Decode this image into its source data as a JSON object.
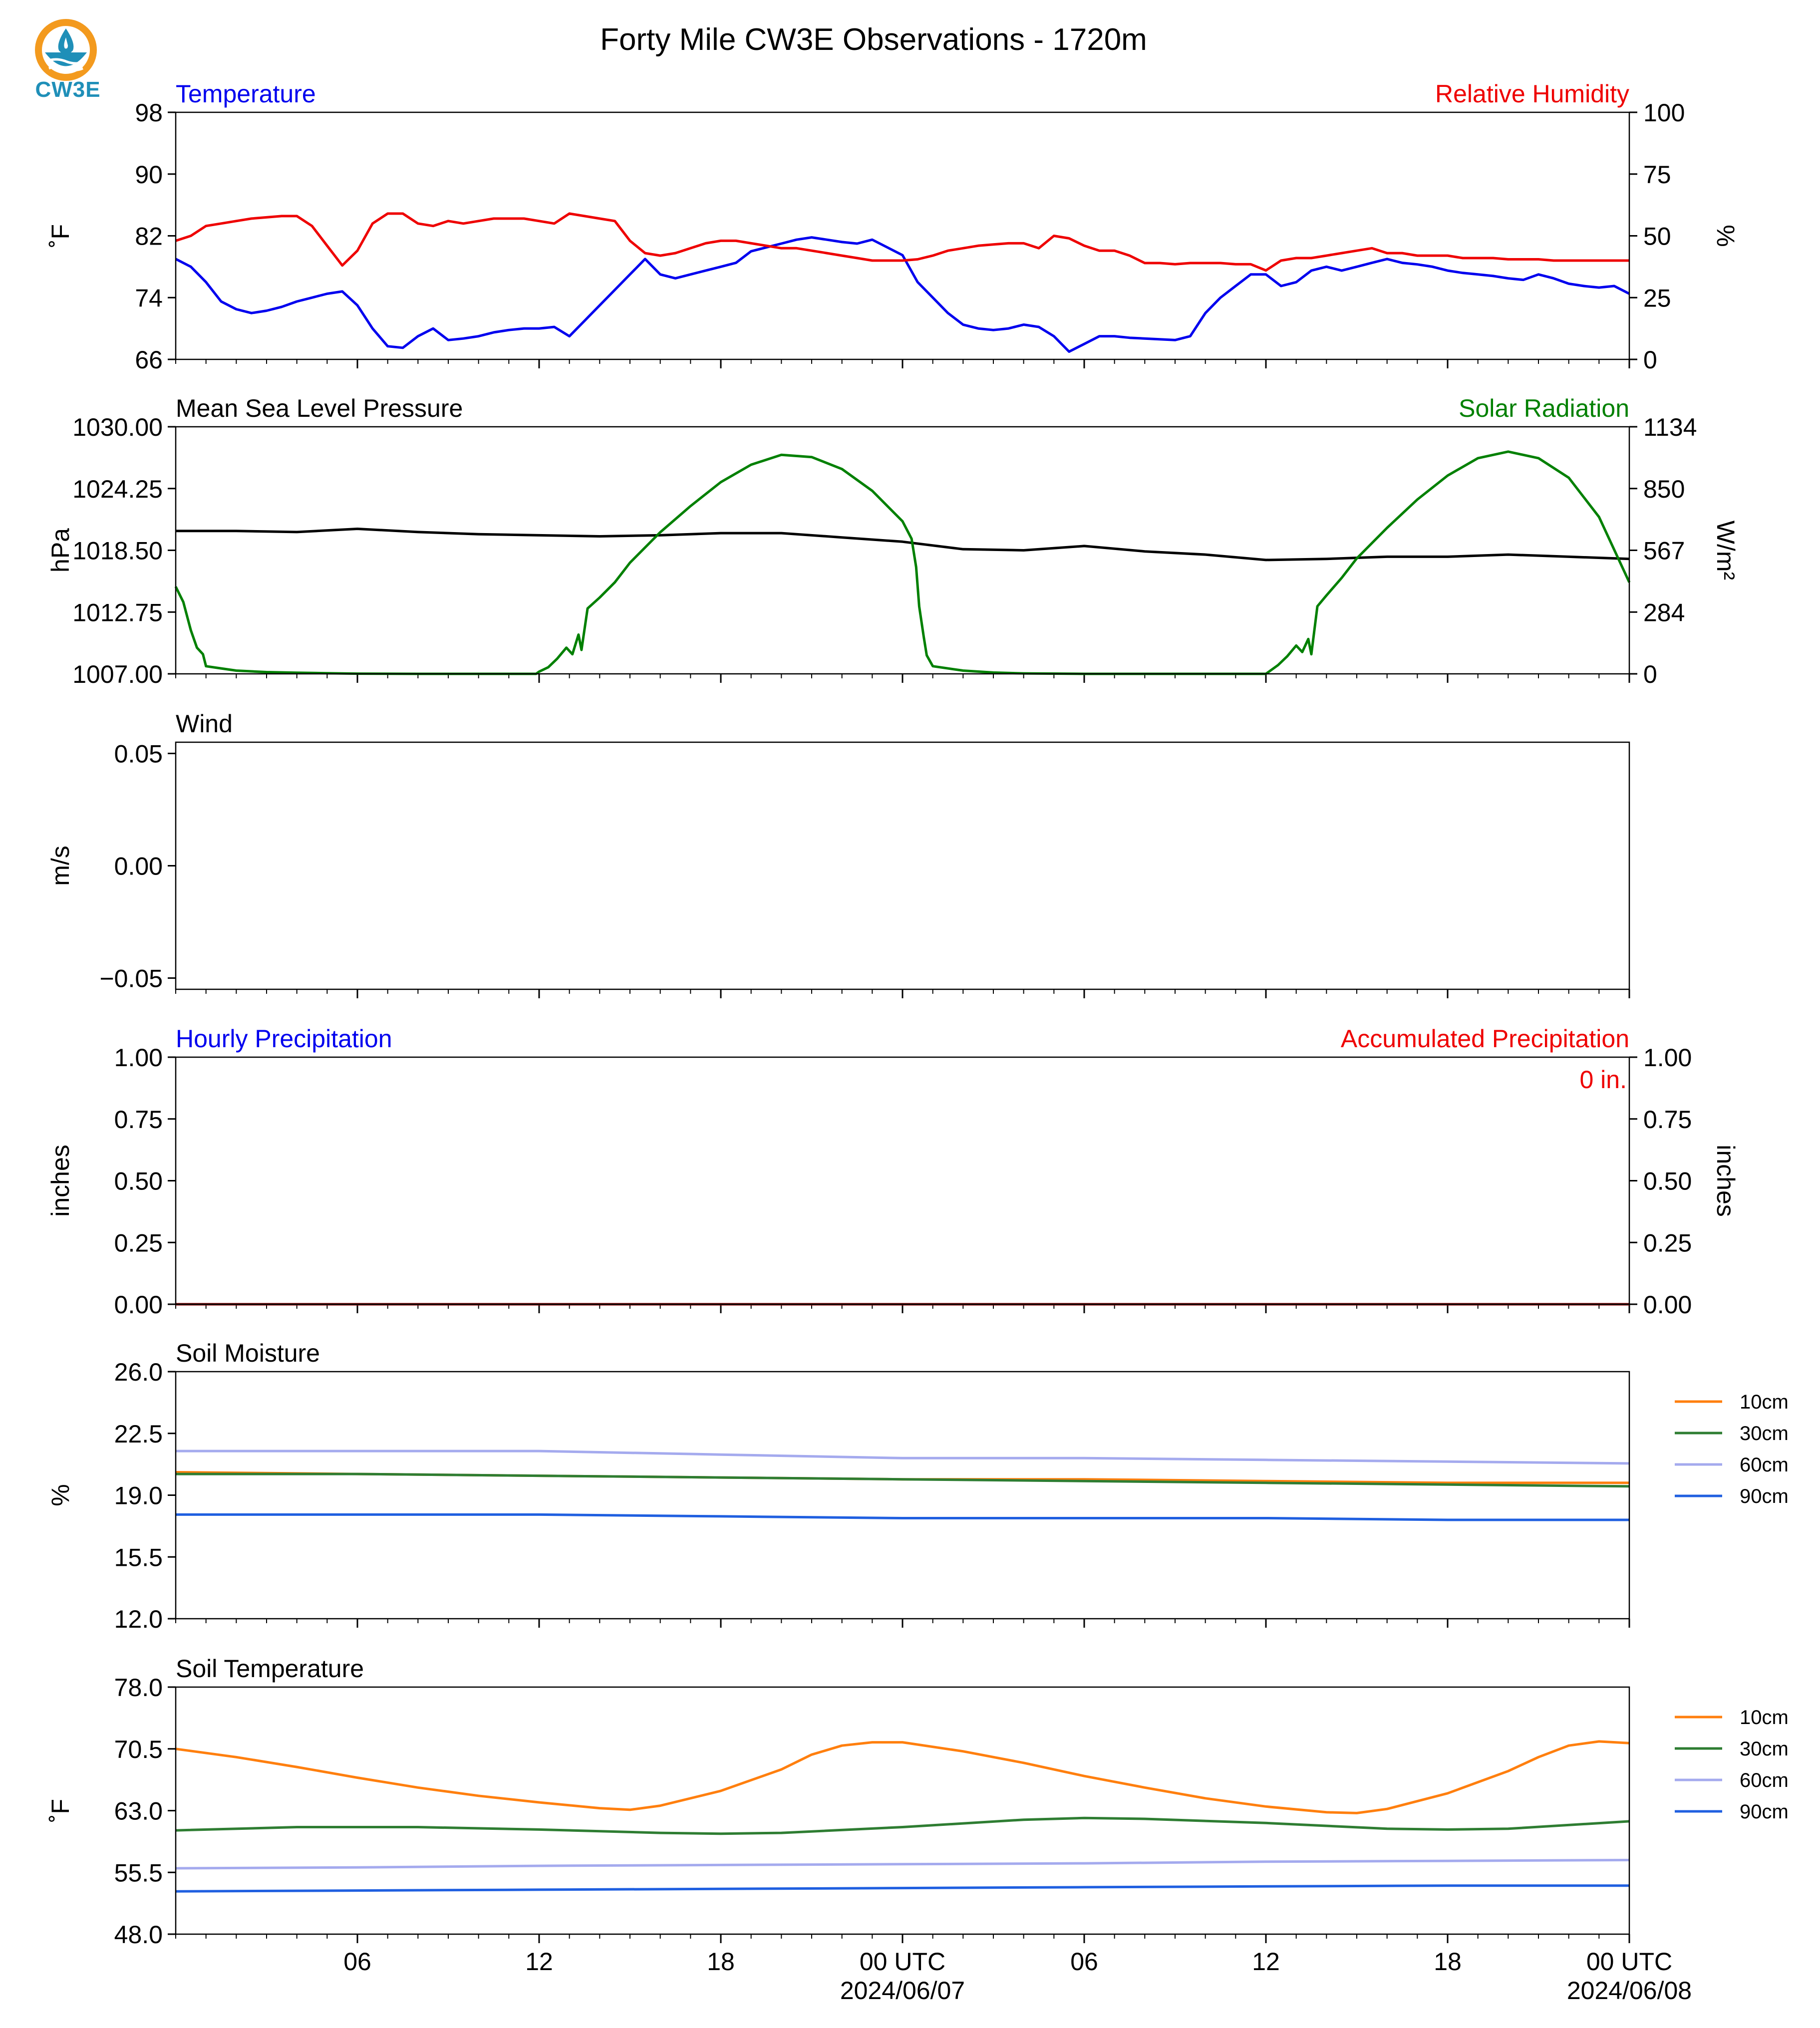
{
  "title": "Forty Mile CW3E Observations - 1720m",
  "logo": {
    "text": "CW3E",
    "colors": {
      "ring": "#f39a1e",
      "water": "#1f8fb8"
    }
  },
  "chart_data": [
    {
      "type": "line",
      "left_title": "Temperature",
      "right_title": "Relative Humidity",
      "left_title_color": "#0000ee",
      "right_title_color": "#ee0000",
      "ylabel": "˚F",
      "y2label": "%",
      "ylim": [
        66,
        98
      ],
      "y2lim": [
        0,
        100
      ],
      "yticks": [
        "98",
        "90",
        "82",
        "74",
        "66"
      ],
      "y2ticks": [
        "100",
        "75",
        "50",
        "25",
        "0"
      ],
      "series": [
        {
          "axis": "left",
          "color": "#0000ee",
          "x": [
            0,
            0.5,
            1,
            1.5,
            2,
            2.5,
            3,
            3.5,
            4,
            4.5,
            5,
            5.5,
            6,
            6.5,
            7,
            7.5,
            8,
            8.5,
            9,
            9.5,
            10,
            10.5,
            11,
            11.5,
            12,
            12.5,
            13,
            13.5,
            14,
            14.5,
            15,
            15.5,
            16,
            16.5,
            17,
            17.5,
            18,
            18.5,
            19,
            19.5,
            20,
            20.5,
            21,
            21.5,
            22,
            22.5,
            23,
            23.5,
            24,
            24.5,
            25,
            25.5,
            26,
            26.5,
            27,
            27.5,
            28,
            28.5,
            29,
            29.5,
            30,
            30.5,
            31,
            31.5,
            32,
            32.5,
            33,
            33.5,
            34,
            34.5,
            35,
            35.5,
            36,
            36.5,
            37,
            37.5,
            38,
            38.5,
            39,
            39.5,
            40,
            40.5,
            41,
            41.5,
            42,
            42.5,
            43,
            43.5,
            44,
            44.5,
            45,
            45.5,
            46,
            46.5,
            47,
            47.5,
            48
          ],
          "y": [
            79,
            78,
            76,
            73.5,
            72.5,
            72,
            72.3,
            72.8,
            73.5,
            74,
            74.5,
            74.8,
            73,
            70,
            67.7,
            67.5,
            69,
            70,
            68.5,
            68.7,
            69,
            69.5,
            69.8,
            70,
            70,
            70.2,
            69,
            71,
            73,
            75,
            77,
            79,
            77,
            76.5,
            77,
            77.5,
            78,
            78.5,
            80,
            80.5,
            81,
            81.5,
            81.8,
            81.5,
            81.2,
            81,
            81.5,
            80.5,
            79.5,
            76,
            74,
            72,
            70.5,
            70,
            69.8,
            70,
            70.5,
            70.2,
            69,
            67,
            68,
            69,
            69,
            68.8,
            68.7,
            68.6,
            68.5,
            69,
            72,
            74,
            75.5,
            77,
            77,
            75.5,
            76,
            77.5,
            78,
            77.5,
            78,
            78.5,
            79,
            78.5,
            78.3,
            78,
            77.5,
            77.2,
            77,
            76.8,
            76.5,
            76.3,
            77,
            76.5,
            75.8,
            75.5,
            75.3,
            75.5,
            74.5
          ]
        },
        {
          "axis": "right",
          "color": "#ee0000",
          "x": [
            0,
            0.5,
            1,
            1.5,
            2,
            2.5,
            3,
            3.5,
            4,
            4.5,
            5,
            5.5,
            6,
            6.5,
            7,
            7.5,
            8,
            8.5,
            9,
            9.5,
            10,
            10.5,
            11,
            11.5,
            12,
            12.5,
            13,
            13.5,
            14,
            14.5,
            15,
            15.5,
            16,
            16.5,
            17,
            17.5,
            18,
            18.5,
            19,
            19.5,
            20,
            20.5,
            21,
            21.5,
            22,
            22.5,
            23,
            23.5,
            24,
            24.5,
            25,
            25.5,
            26,
            26.5,
            27,
            27.5,
            28,
            28.5,
            29,
            29.5,
            30,
            30.5,
            31,
            31.5,
            32,
            32.5,
            33,
            33.5,
            34,
            34.5,
            35,
            35.5,
            36,
            36.5,
            37,
            37.5,
            38,
            38.5,
            39,
            39.5,
            40,
            40.5,
            41,
            41.5,
            42,
            42.5,
            43,
            43.5,
            44,
            44.5,
            45,
            45.5,
            46,
            46.5,
            47,
            47.5,
            48
          ],
          "y": [
            48,
            50,
            54,
            55,
            56,
            57,
            57.5,
            58,
            58,
            54,
            46,
            38,
            44,
            55,
            59,
            59,
            55,
            54,
            56,
            55,
            56,
            57,
            57,
            57,
            56,
            55,
            59,
            58,
            57,
            56,
            48,
            43,
            42,
            43,
            45,
            47,
            48,
            48,
            47,
            46,
            45,
            45,
            44,
            43,
            42,
            41,
            40,
            40,
            40,
            40.5,
            42,
            44,
            45,
            46,
            46.5,
            47,
            47,
            45,
            50,
            49,
            46,
            44,
            44,
            42,
            39,
            39,
            38.5,
            39,
            39,
            39,
            38.5,
            38.5,
            36,
            40,
            41,
            41,
            42,
            43,
            44,
            45,
            43,
            43,
            42,
            42,
            42,
            41,
            41,
            41,
            40.5,
            40.5,
            40.5,
            40,
            40,
            40,
            40,
            40,
            40
          ]
        }
      ]
    },
    {
      "type": "line",
      "left_title": "Mean Sea Level Pressure",
      "right_title": "Solar Radiation",
      "left_title_color": "#000000",
      "right_title_color": "#008000",
      "ylabel": "hPa",
      "y2label": "W/m²",
      "ylim": [
        1007,
        1030
      ],
      "y2lim": [
        0,
        1134
      ],
      "yticks": [
        "1030.00",
        "1024.25",
        "1018.50",
        "1012.75",
        "1007.00"
      ],
      "y2ticks": [
        "1134",
        "850",
        "567",
        "284",
        "0"
      ],
      "series": [
        {
          "axis": "left",
          "color": "#000000",
          "x": [
            0,
            2,
            4,
            6,
            8,
            10,
            12,
            14,
            16,
            18,
            20,
            22,
            24,
            26,
            28,
            30,
            32,
            34,
            36,
            38,
            40,
            42,
            44,
            46,
            48
          ],
          "y": [
            1020.3,
            1020.3,
            1020.2,
            1020.5,
            1020.2,
            1020,
            1019.9,
            1019.8,
            1019.9,
            1020.1,
            1020.1,
            1019.7,
            1019.3,
            1018.6,
            1018.5,
            1018.9,
            1018.4,
            1018.1,
            1017.6,
            1017.7,
            1017.9,
            1017.9,
            1018.1,
            1017.9,
            1017.7
          ]
        },
        {
          "axis": "right",
          "color": "#008000",
          "x": [
            0,
            0.25,
            0.5,
            0.7,
            0.9,
            1,
            1.5,
            2,
            3,
            4,
            5,
            6,
            8,
            10,
            11,
            11.9,
            12,
            12.3,
            12.6,
            12.9,
            13.1,
            13.3,
            13.4,
            13.6,
            14,
            14.5,
            15,
            16,
            17,
            18,
            19,
            20,
            21,
            22,
            23,
            24,
            24.3,
            24.45,
            24.55,
            24.7,
            24.8,
            25,
            26,
            27,
            28,
            30,
            32,
            34,
            35,
            36,
            36.1,
            36.4,
            36.7,
            37,
            37.2,
            37.4,
            37.5,
            37.7,
            38,
            38.5,
            39,
            40,
            41,
            42,
            43,
            44,
            45,
            46,
            47,
            48
          ],
          "y": [
            400,
            330,
            200,
            120,
            90,
            35,
            25,
            15,
            8,
            5,
            3,
            1,
            0,
            0,
            0,
            0,
            10,
            30,
            70,
            120,
            90,
            180,
            110,
            300,
            350,
            420,
            510,
            650,
            770,
            880,
            960,
            1005,
            995,
            940,
            840,
            700,
            620,
            490,
            310,
            170,
            85,
            35,
            15,
            6,
            2,
            0,
            0,
            0,
            0,
            0,
            10,
            40,
            80,
            130,
            100,
            160,
            90,
            310,
            360,
            440,
            530,
            670,
            800,
            910,
            990,
            1020,
            990,
            900,
            720,
            420
          ]
        }
      ]
    },
    {
      "type": "line",
      "left_title": "Wind",
      "right_title": "",
      "left_title_color": "#000000",
      "right_title_color": "#000000",
      "ylabel": "m/s",
      "y2label": "",
      "ylim": [
        -0.055,
        0.055
      ],
      "y2lim": null,
      "yticks": [
        "0.05",
        "0.00",
        "−0.05"
      ],
      "ytick_values": [
        0.05,
        0,
        -0.05
      ],
      "y2ticks": [],
      "series": []
    },
    {
      "type": "line",
      "left_title": "Hourly Precipitation",
      "right_title": "Accumulated Precipitation",
      "left_title_color": "#0000ee",
      "right_title_color": "#ee0000",
      "ylabel": "inches",
      "y2label": "inches",
      "ylim": [
        0,
        1
      ],
      "y2lim": [
        0,
        1
      ],
      "yticks": [
        "1.00",
        "0.75",
        "0.50",
        "0.25",
        "0.00"
      ],
      "y2ticks": [
        "1.00",
        "0.75",
        "0.50",
        "0.25",
        "0.00"
      ],
      "annotation": "0 in.",
      "annotation_color": "#ee0000",
      "series": [
        {
          "axis": "left",
          "color": "#8b0000",
          "x": [
            0,
            48
          ],
          "y": [
            0,
            0
          ]
        }
      ]
    },
    {
      "type": "line",
      "left_title": "Soil Moisture",
      "right_title": "",
      "left_title_color": "#000000",
      "right_title_color": "#000000",
      "ylabel": "%",
      "y2label": "",
      "ylim": [
        12,
        26
      ],
      "y2lim": null,
      "yticks": [
        "26.0",
        "22.5",
        "19.0",
        "15.5",
        "12.0"
      ],
      "y2ticks": [],
      "legend": "right",
      "series": [
        {
          "name": "10cm",
          "axis": "left",
          "color": "#ff7f0e",
          "x": [
            0,
            6,
            12,
            18,
            24,
            30,
            36,
            42,
            48
          ],
          "y": [
            20.3,
            20.2,
            20.1,
            20.0,
            19.9,
            19.9,
            19.8,
            19.7,
            19.7
          ]
        },
        {
          "name": "30cm",
          "axis": "left",
          "color": "#2e7d32",
          "x": [
            0,
            6,
            12,
            18,
            24,
            30,
            36,
            42,
            48
          ],
          "y": [
            20.2,
            20.2,
            20.1,
            20.0,
            19.9,
            19.8,
            19.7,
            19.6,
            19.5
          ]
        },
        {
          "name": "60cm",
          "axis": "left",
          "color": "#a4aaee",
          "x": [
            0,
            6,
            12,
            18,
            24,
            30,
            36,
            42,
            48
          ],
          "y": [
            21.5,
            21.5,
            21.5,
            21.3,
            21.1,
            21.1,
            21.0,
            20.9,
            20.8
          ]
        },
        {
          "name": "90cm",
          "axis": "left",
          "color": "#1f5fe0",
          "x": [
            0,
            6,
            12,
            18,
            24,
            30,
            36,
            42,
            48
          ],
          "y": [
            17.9,
            17.9,
            17.9,
            17.8,
            17.7,
            17.7,
            17.7,
            17.6,
            17.6
          ]
        }
      ]
    },
    {
      "type": "line",
      "left_title": "Soil Temperature",
      "right_title": "",
      "left_title_color": "#000000",
      "right_title_color": "#000000",
      "ylabel": "˚F",
      "y2label": "",
      "ylim": [
        48,
        78
      ],
      "y2lim": null,
      "yticks": [
        "78.0",
        "70.5",
        "63.0",
        "55.5",
        "48.0"
      ],
      "y2ticks": [],
      "legend": "right",
      "series": [
        {
          "name": "10cm",
          "axis": "left",
          "color": "#ff7f0e",
          "x": [
            0,
            2,
            4,
            6,
            8,
            10,
            12,
            14,
            15,
            16,
            18,
            20,
            21,
            22,
            23,
            24,
            26,
            28,
            30,
            32,
            34,
            36,
            38,
            39,
            40,
            42,
            44,
            45,
            46,
            47,
            48
          ],
          "y": [
            70.5,
            69.5,
            68.3,
            67.0,
            65.8,
            64.8,
            64.0,
            63.3,
            63.1,
            63.6,
            65.4,
            68.0,
            69.8,
            70.9,
            71.3,
            71.3,
            70.2,
            68.8,
            67.2,
            65.8,
            64.5,
            63.5,
            62.8,
            62.7,
            63.2,
            65.1,
            67.8,
            69.5,
            70.9,
            71.4,
            71.2
          ]
        },
        {
          "name": "30cm",
          "axis": "left",
          "color": "#2e7d32",
          "x": [
            0,
            4,
            8,
            12,
            16,
            18,
            20,
            24,
            28,
            30,
            32,
            36,
            40,
            42,
            44,
            48
          ],
          "y": [
            60.6,
            61.0,
            61.0,
            60.7,
            60.3,
            60.2,
            60.3,
            61.0,
            61.9,
            62.1,
            62.0,
            61.5,
            60.8,
            60.7,
            60.8,
            61.7
          ]
        },
        {
          "name": "60cm",
          "axis": "left",
          "color": "#a4aaee",
          "x": [
            0,
            6,
            12,
            18,
            24,
            30,
            36,
            42,
            48
          ],
          "y": [
            56.0,
            56.1,
            56.3,
            56.4,
            56.5,
            56.6,
            56.8,
            56.9,
            57.0
          ]
        },
        {
          "name": "90cm",
          "axis": "left",
          "color": "#1f5fe0",
          "x": [
            0,
            6,
            12,
            18,
            24,
            30,
            36,
            42,
            48
          ],
          "y": [
            53.2,
            53.3,
            53.4,
            53.5,
            53.6,
            53.7,
            53.8,
            53.9,
            53.9
          ]
        }
      ]
    }
  ],
  "xaxis": {
    "xlim": [
      0,
      48
    ],
    "major_ticks": [
      6,
      12,
      18,
      24,
      30,
      36,
      42,
      48
    ],
    "minor_ticks": [
      0,
      1,
      2,
      3,
      4,
      5,
      7,
      8,
      9,
      10,
      11,
      13,
      14,
      15,
      16,
      17,
      19,
      20,
      21,
      22,
      23,
      25,
      26,
      27,
      28,
      29,
      31,
      32,
      33,
      34,
      35,
      37,
      38,
      39,
      40,
      41,
      43,
      44,
      45,
      46,
      47
    ],
    "labels": [
      "06",
      "12",
      "18",
      "00 UTC",
      "06",
      "12",
      "18",
      "00 UTC"
    ],
    "dates": [
      {
        "x": 24,
        "label": "2024/06/07"
      },
      {
        "x": 48,
        "label": "2024/06/08"
      }
    ]
  }
}
